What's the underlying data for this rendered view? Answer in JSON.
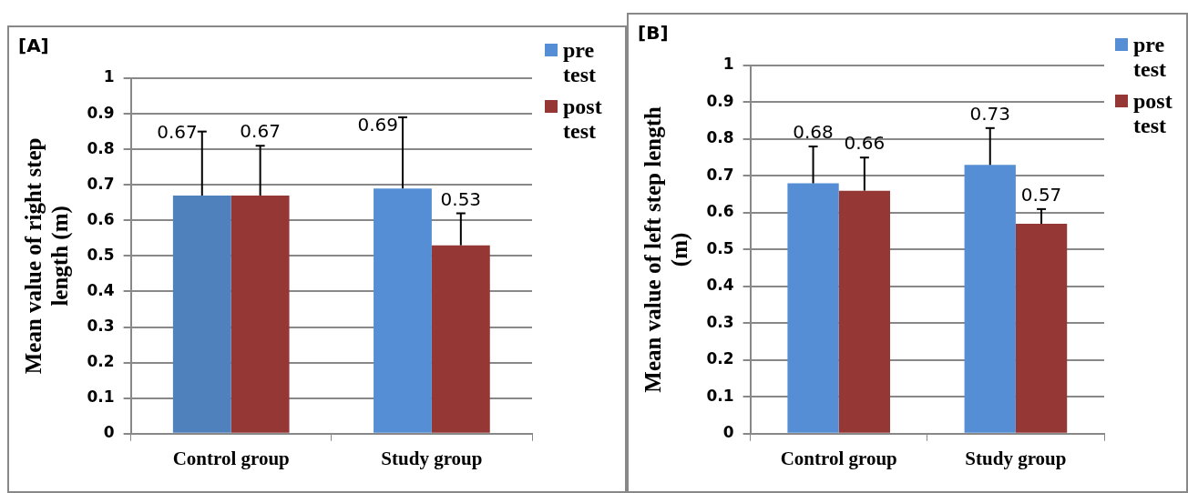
{
  "chart_data": [
    {
      "type": "bar",
      "title": "[A]",
      "ylabel": "Mean value of  right step length (m)",
      "categories": [
        "Control group",
        "Study group"
      ],
      "series": [
        {
          "name": "pre test",
          "color": "#558ed5",
          "colors": [
            "#4f81bd",
            "#558ed5"
          ],
          "values": [
            0.67,
            0.69
          ],
          "errors": [
            [
              0.67,
              0.85
            ],
            [
              0.69,
              0.89
            ]
          ]
        },
        {
          "name": "post test",
          "color": "#953735",
          "values": [
            0.67,
            0.53
          ],
          "errors": [
            [
              0.67,
              0.81
            ],
            [
              0.53,
              0.62
            ]
          ]
        }
      ],
      "ylim": [
        0,
        1
      ],
      "yticks": [
        0,
        0.1,
        0.2,
        0.3,
        0.4,
        0.5,
        0.6,
        0.7,
        0.8,
        0.9,
        1
      ],
      "grid": "y",
      "legend": "top right",
      "data_labels": true
    },
    {
      "type": "bar",
      "title": "[B]",
      "ylabel": "Mean value of  left step length (m)",
      "categories": [
        "Control group",
        "Study group"
      ],
      "series": [
        {
          "name": "pre test",
          "color": "#558ed5",
          "values": [
            0.68,
            0.73
          ],
          "errors": [
            [
              0.68,
              0.78
            ],
            [
              0.73,
              0.83
            ]
          ]
        },
        {
          "name": "post test",
          "color": "#953735",
          "values": [
            0.66,
            0.57
          ],
          "errors": [
            [
              0.66,
              0.75
            ],
            [
              0.57,
              0.61
            ]
          ]
        }
      ],
      "ylim": [
        0,
        1
      ],
      "yticks": [
        0,
        0.1,
        0.2,
        0.3,
        0.4,
        0.5,
        0.6,
        0.7,
        0.8,
        0.9,
        1
      ],
      "grid": "y",
      "legend": "top right",
      "data_labels": true
    }
  ]
}
